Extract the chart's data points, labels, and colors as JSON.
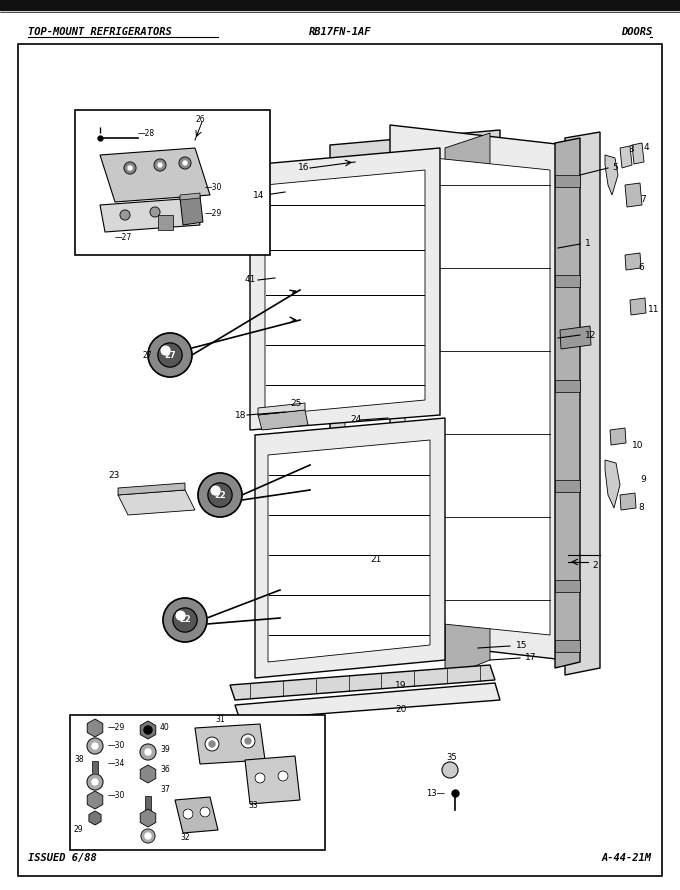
{
  "title_left": "TOP-MOUNT REFRIGERATORS",
  "title_center": "RB17FN-1AF",
  "title_right": "DOORS",
  "footer_left": "ISSUED 6/88",
  "footer_right": "A-44-21M",
  "bg_color": "#ffffff",
  "border_color": "#000000",
  "text_color": "#000000",
  "fig_width": 6.8,
  "fig_height": 8.9,
  "dpi": 100
}
